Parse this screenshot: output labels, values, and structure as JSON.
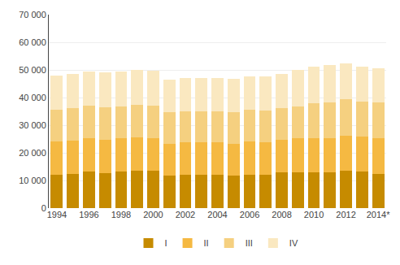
{
  "chart_data": {
    "type": "bar",
    "stacked": true,
    "categories": [
      "1994",
      null,
      "1996",
      null,
      "1998",
      null,
      "2000",
      null,
      "2002",
      null,
      "2004",
      null,
      "2006",
      null,
      "2008",
      null,
      "2010",
      null,
      "2012",
      null,
      "2014*"
    ],
    "series": [
      {
        "name": "I",
        "color": "#C68B00",
        "values": [
          12100,
          12400,
          13200,
          12700,
          13200,
          13400,
          13400,
          11800,
          12200,
          12200,
          12100,
          11700,
          12200,
          12100,
          12800,
          13000,
          12900,
          12900,
          13600,
          13300,
          12500
        ]
      },
      {
        "name": "II",
        "color": "#F5B942",
        "values": [
          12000,
          12000,
          12200,
          12100,
          12000,
          12200,
          12000,
          11500,
          11700,
          11500,
          11700,
          11600,
          11800,
          11800,
          12000,
          12200,
          12300,
          12400,
          12600,
          12500,
          12800
        ]
      },
      {
        "name": "III",
        "color": "#F5D080",
        "values": [
          11500,
          11800,
          11600,
          11700,
          11600,
          11700,
          11700,
          11500,
          11200,
          11300,
          11300,
          11400,
          11600,
          11500,
          11500,
          11700,
          12800,
          12800,
          13200,
          12700,
          12900
        ]
      },
      {
        "name": "IV",
        "color": "#FAE8C0",
        "values": [
          12200,
          12400,
          12500,
          12500,
          12500,
          12600,
          12700,
          11800,
          12100,
          12000,
          12100,
          12000,
          12100,
          12200,
          12200,
          13000,
          13200,
          13700,
          13100,
          12700,
          12300
        ]
      }
    ],
    "ylim": [
      0,
      70000
    ],
    "yticks": [
      0,
      {
        "value": 10000,
        "label": "10 000"
      },
      {
        "value": 20000,
        "label": "20 000"
      },
      {
        "value": 30000,
        "label": "30 000"
      },
      {
        "value": 40000,
        "label": "40 000"
      },
      {
        "value": 50000,
        "label": "50 000"
      },
      {
        "value": 60000,
        "label": "60 000"
      },
      {
        "value": 70000,
        "label": "70 000"
      }
    ],
    "grid": true,
    "legend": "bottom"
  }
}
